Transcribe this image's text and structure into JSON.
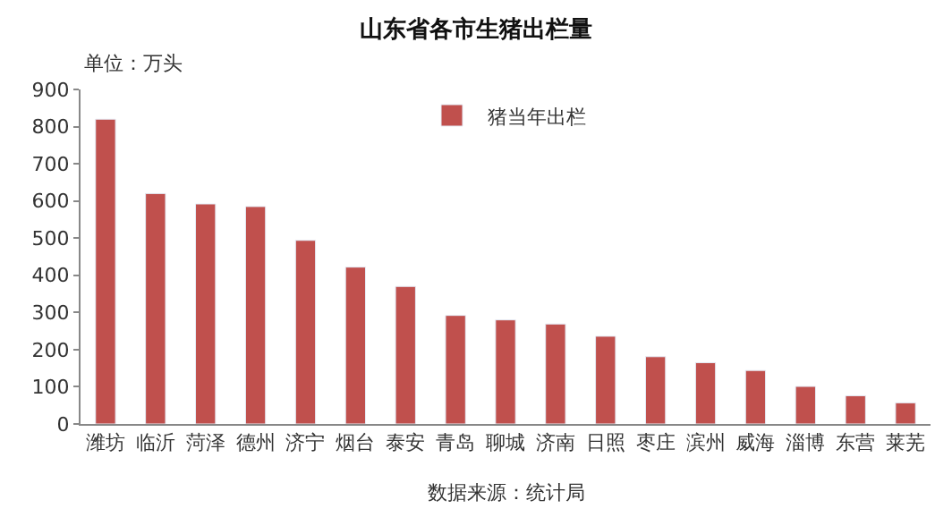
{
  "chart_data": {
    "type": "bar",
    "title": "山东省各市生猪出栏量",
    "categories": [
      "潍坊",
      "临沂",
      "菏泽",
      "德州",
      "济宁",
      "烟台",
      "泰安",
      "青岛",
      "聊城",
      "济南",
      "日照",
      "枣庄",
      "滨州",
      "威海",
      "淄博",
      "东营",
      "莱芜"
    ],
    "series": [
      {
        "name": "猪当年出栏",
        "color": "#c0504d",
        "values": [
          820,
          620,
          592,
          585,
          494,
          422,
          370,
          292,
          280,
          269,
          236,
          181,
          165,
          144,
          101,
          76,
          57
        ]
      }
    ],
    "ylim": [
      0,
      900
    ],
    "yticks": [
      0,
      100,
      200,
      300,
      400,
      500,
      600,
      700,
      800,
      900
    ],
    "annotations": [
      "单位：万头",
      "数据来源：统计局"
    ],
    "legend": "top",
    "grid": false
  }
}
